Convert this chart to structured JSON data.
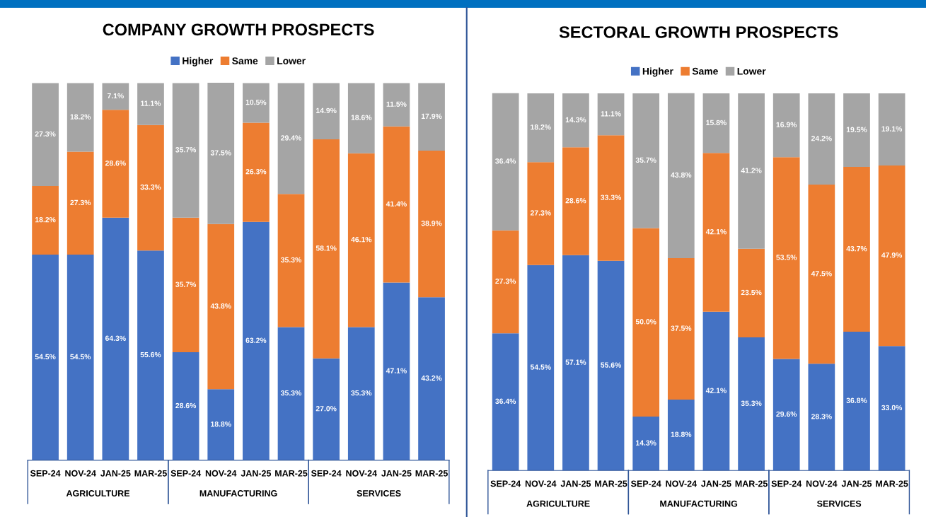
{
  "chart_data": [
    {
      "type": "bar",
      "title": "COMPANY GROWTH PROSPECTS",
      "stacked": true,
      "legend": "top",
      "tick_labels": "x",
      "categories": [
        "SEP-24",
        "NOV-24",
        "JAN-25",
        "MAR-25",
        "SEP-24",
        "NOV-24",
        "JAN-25",
        "MAR-25",
        "SEP-24",
        "NOV-24",
        "JAN-25",
        "MAR-25"
      ],
      "annotations": [
        "AGRICULTURE",
        "MANUFACTURING",
        "SERVICES"
      ],
      "series": [
        {
          "name": "Higher",
          "color": "#4472c4",
          "values": [
            54.5,
            54.5,
            64.3,
            55.6,
            28.6,
            18.8,
            63.2,
            35.3,
            27.0,
            35.3,
            47.1,
            43.2
          ],
          "value_labels": [
            "54.5%",
            "54.5%",
            "64.3%",
            "55.6%",
            "28.6%",
            "18.8%",
            "63.2%",
            "35.3%",
            "27.0%",
            "35.3%",
            "47.1%",
            "43.2%"
          ]
        },
        {
          "name": "Same",
          "color": "#ed7d31",
          "values": [
            18.2,
            27.3,
            28.6,
            33.3,
            35.7,
            43.8,
            26.3,
            35.3,
            58.1,
            46.1,
            41.4,
            38.9
          ],
          "value_labels": [
            "18.2%",
            "27.3%",
            "28.6%",
            "33.3%",
            "35.7%",
            "43.8%",
            "26.3%",
            "35.3%",
            "58.1%",
            "46.1%",
            "41.4%",
            "38.9%"
          ]
        },
        {
          "name": "Lower",
          "color": "#a5a5a5",
          "values": [
            27.3,
            18.2,
            7.1,
            11.1,
            35.7,
            37.5,
            10.5,
            29.4,
            14.9,
            18.6,
            11.5,
            17.9
          ],
          "value_labels": [
            "27.3%",
            "18.2%",
            "7.1%",
            "11.1%",
            "35.7%",
            "37.5%",
            "10.5%",
            "29.4%",
            "14.9%",
            "18.6%",
            "11.5%",
            "17.9%"
          ]
        }
      ]
    },
    {
      "type": "bar",
      "title": "SECTORAL GROWTH PROSPECTS",
      "stacked": true,
      "legend": "top",
      "tick_labels": "x",
      "categories": [
        "SEP-24",
        "NOV-24",
        "JAN-25",
        "MAR-25",
        "SEP-24",
        "NOV-24",
        "JAN-25",
        "MAR-25",
        "SEP-24",
        "NOV-24",
        "JAN-25",
        "MAR-25"
      ],
      "annotations": [
        "AGRICULTURE",
        "MANUFACTURING",
        "SERVICES"
      ],
      "series": [
        {
          "name": "Higher",
          "color": "#4472c4",
          "values": [
            36.4,
            54.5,
            57.1,
            55.6,
            14.3,
            18.8,
            42.1,
            35.3,
            29.6,
            28.3,
            36.8,
            33.0
          ],
          "value_labels": [
            "36.4%",
            "54.5%",
            "57.1%",
            "55.6%",
            "14.3%",
            "18.8%",
            "42.1%",
            "35.3%",
            "29.6%",
            "28.3%",
            "36.8%",
            "33.0%"
          ]
        },
        {
          "name": "Same",
          "color": "#ed7d31",
          "values": [
            27.3,
            27.3,
            28.6,
            33.3,
            50.0,
            37.5,
            42.1,
            23.5,
            53.5,
            47.5,
            43.7,
            47.9
          ],
          "value_labels": [
            "27.3%",
            "27.3%",
            "28.6%",
            "33.3%",
            "50.0%",
            "37.5%",
            "42.1%",
            "23.5%",
            "53.5%",
            "47.5%",
            "43.7%",
            "47.9%"
          ]
        },
        {
          "name": "Lower",
          "color": "#a5a5a5",
          "values": [
            36.4,
            18.2,
            14.3,
            11.1,
            35.7,
            43.8,
            15.8,
            41.2,
            16.9,
            24.2,
            19.5,
            19.1
          ],
          "value_labels": [
            "36.4%",
            "18.2%",
            "14.3%",
            "11.1%",
            "35.7%",
            "43.8%",
            "15.8%",
            "41.2%",
            "16.9%",
            "24.2%",
            "19.5%",
            "19.1%"
          ]
        }
      ]
    }
  ]
}
